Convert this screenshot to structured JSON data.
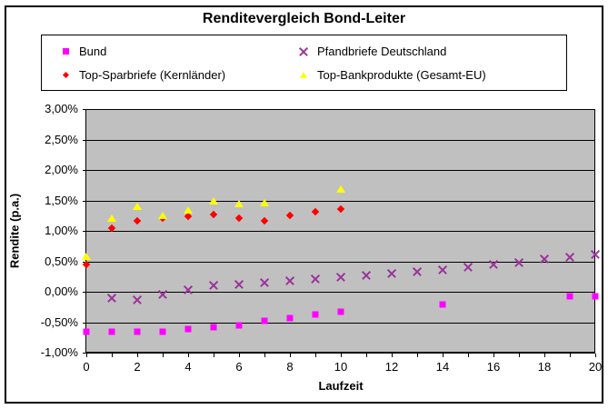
{
  "chart_data": {
    "type": "scatter",
    "title": "Renditevergleich Bond-Leiter",
    "xlabel": "Laufzeit",
    "ylabel": "Rendite (p.a.)",
    "plot_background": "#C0C0C0",
    "grid": "horizontal",
    "legend_position": "top",
    "x_axis": {
      "min": 0,
      "max": 20,
      "major_tick_labels": [
        "0",
        "2",
        "4",
        "6",
        "8",
        "10",
        "12",
        "14",
        "16",
        "18",
        "20"
      ],
      "major_tick_values": [
        0,
        2,
        4,
        6,
        8,
        10,
        12,
        14,
        16,
        18,
        20
      ],
      "minor_tick_step": 1
    },
    "y_axis": {
      "min": -1.0,
      "max": 3.0,
      "ticks": [
        {
          "value": 3.0,
          "label": "3,00%"
        },
        {
          "value": 2.5,
          "label": "2,50%"
        },
        {
          "value": 2.0,
          "label": "2,00%"
        },
        {
          "value": 1.5,
          "label": "1,50%"
        },
        {
          "value": 1.0,
          "label": "1,00%"
        },
        {
          "value": 0.5,
          "label": "0,50%"
        },
        {
          "value": 0.0,
          "label": "0,00%"
        },
        {
          "value": -0.5,
          "label": "-0,50%"
        },
        {
          "value": -1.0,
          "label": "-1,00%"
        }
      ]
    },
    "series": [
      {
        "name": "Bund",
        "marker": "square",
        "color": "#FF00FF",
        "points": [
          [
            0,
            -0.65
          ],
          [
            1,
            -0.65
          ],
          [
            2,
            -0.65
          ],
          [
            3,
            -0.65
          ],
          [
            4,
            -0.61
          ],
          [
            5,
            -0.58
          ],
          [
            6,
            -0.55
          ],
          [
            7,
            -0.48
          ],
          [
            8,
            -0.43
          ],
          [
            9,
            -0.38
          ],
          [
            10,
            -0.33
          ],
          [
            14,
            -0.21
          ],
          [
            19,
            -0.08
          ],
          [
            20,
            -0.08
          ]
        ]
      },
      {
        "name": "Pfandbriefe Deutschland",
        "marker": "x",
        "color": "#993399",
        "points": [
          [
            1,
            -0.1
          ],
          [
            2,
            -0.13
          ],
          [
            3,
            -0.04
          ],
          [
            4,
            0.04
          ],
          [
            5,
            0.11
          ],
          [
            6,
            0.13
          ],
          [
            7,
            0.16
          ],
          [
            8,
            0.19
          ],
          [
            9,
            0.22
          ],
          [
            10,
            0.25
          ],
          [
            11,
            0.28
          ],
          [
            12,
            0.31
          ],
          [
            13,
            0.33
          ],
          [
            14,
            0.36
          ],
          [
            15,
            0.41
          ],
          [
            16,
            0.45
          ],
          [
            17,
            0.48
          ],
          [
            18,
            0.54
          ],
          [
            19,
            0.58
          ],
          [
            20,
            0.62
          ]
        ]
      },
      {
        "name": "Top-Sparbriefe (Kernländer)",
        "marker": "diamond",
        "color": "#FF0000",
        "points": [
          [
            0,
            0.45
          ],
          [
            1,
            1.05
          ],
          [
            2,
            1.16
          ],
          [
            3,
            1.21
          ],
          [
            4,
            1.24
          ],
          [
            5,
            1.27
          ],
          [
            6,
            1.21
          ],
          [
            7,
            1.16
          ],
          [
            8,
            1.26
          ],
          [
            9,
            1.31
          ],
          [
            10,
            1.36
          ]
        ]
      },
      {
        "name": "Top-Bankprodukte (Gesamt-EU)",
        "marker": "triangle",
        "color": "#FFFF00",
        "points": [
          [
            0,
            0.58
          ],
          [
            1,
            1.21
          ],
          [
            2,
            1.41
          ],
          [
            3,
            1.26
          ],
          [
            4,
            1.34
          ],
          [
            5,
            1.49
          ],
          [
            6,
            1.45
          ],
          [
            7,
            1.46
          ],
          [
            10,
            1.68
          ]
        ]
      }
    ]
  }
}
